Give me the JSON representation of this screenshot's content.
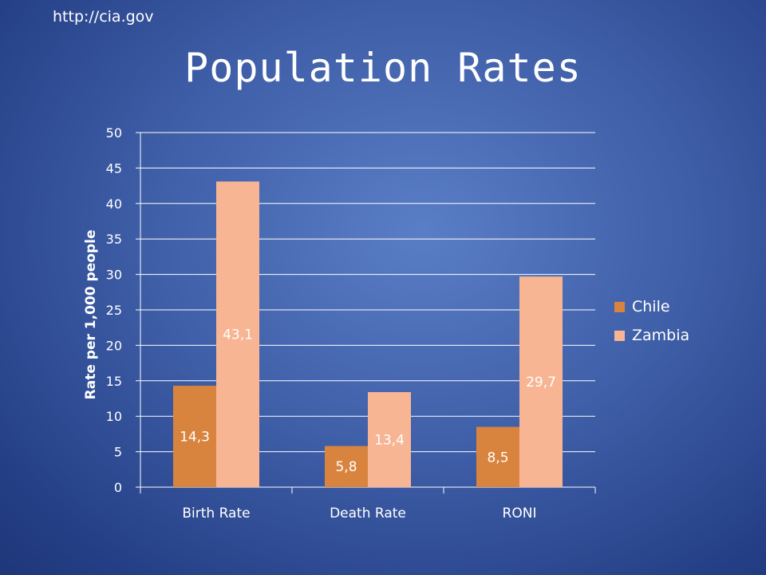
{
  "source": "http://cia.gov",
  "chart_data": {
    "type": "bar",
    "title": "Population Rates",
    "ylabel": "Rate per 1,000 people",
    "xlabel": "",
    "ylim": [
      0,
      50
    ],
    "yticks": [
      "0",
      "5",
      "10",
      "15",
      "20",
      "25",
      "30",
      "35",
      "40",
      "45",
      "50"
    ],
    "categories": [
      "Birth Rate",
      "Death Rate",
      "RONI"
    ],
    "series": [
      {
        "name": "Chile",
        "values": [
          14.3,
          5.8,
          8.5
        ],
        "labels": [
          "14,3",
          "5,8",
          "8,5"
        ],
        "color": "#d9843e"
      },
      {
        "name": "Zambia",
        "values": [
          43.1,
          13.4,
          29.7
        ],
        "labels": [
          "43,1",
          "13,4",
          "29,7"
        ],
        "color": "#f8b593"
      }
    ],
    "grid": true,
    "legend": "right"
  }
}
